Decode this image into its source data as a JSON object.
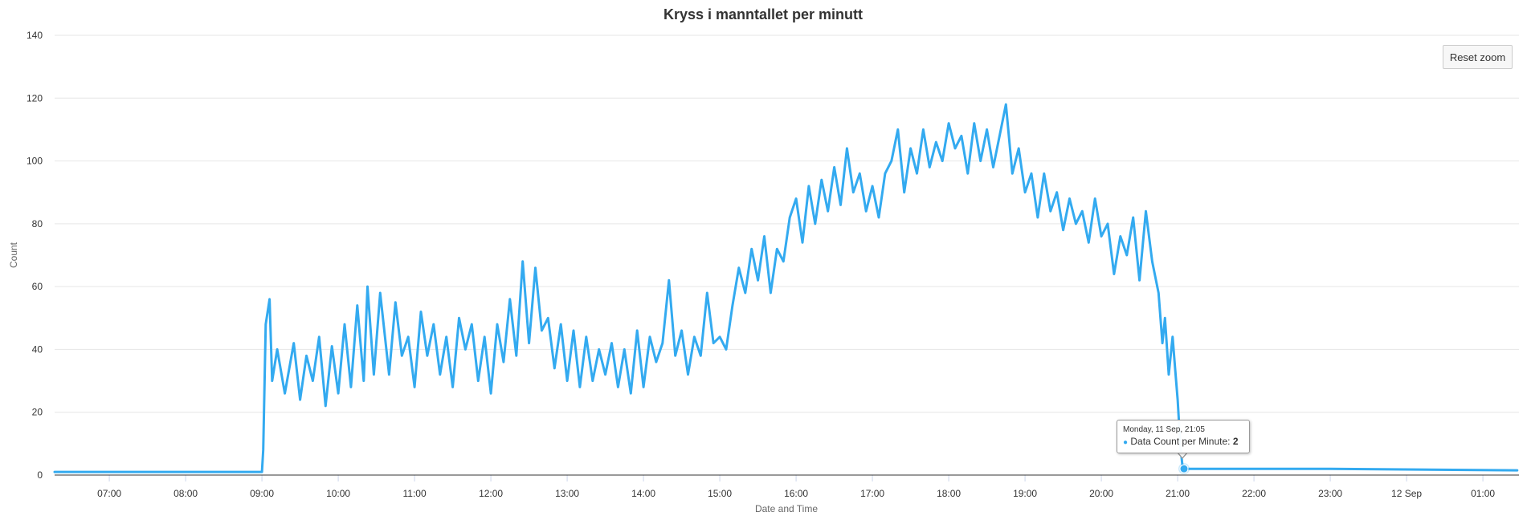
{
  "chart_data": {
    "type": "line",
    "title": "Kryss i manntallet per minutt",
    "xlabel": "Date and Time",
    "ylabel": "Count",
    "ylim": [
      0,
      140
    ],
    "y_ticks": [
      0,
      20,
      40,
      60,
      80,
      100,
      120,
      140
    ],
    "x_range": [
      "06:17",
      "01:27+1"
    ],
    "x_ticks": [
      "07:00",
      "08:00",
      "09:00",
      "10:00",
      "11:00",
      "12:00",
      "13:00",
      "14:00",
      "15:00",
      "16:00",
      "17:00",
      "18:00",
      "19:00",
      "20:00",
      "21:00",
      "22:00",
      "23:00",
      "12 Sep",
      "01:00"
    ],
    "grid": true,
    "legend": "none",
    "line_color": "#33aaf0",
    "series": [
      {
        "name": "Data Count per Minute",
        "points": [
          [
            "06:17",
            1
          ],
          [
            "09:00",
            1
          ],
          [
            "09:01",
            8
          ],
          [
            "09:03",
            48
          ],
          [
            "09:06",
            56
          ],
          [
            "09:08",
            30
          ],
          [
            "09:12",
            40
          ],
          [
            "09:18",
            26
          ],
          [
            "09:25",
            42
          ],
          [
            "09:30",
            24
          ],
          [
            "09:35",
            38
          ],
          [
            "09:40",
            30
          ],
          [
            "09:45",
            44
          ],
          [
            "09:50",
            22
          ],
          [
            "09:55",
            41
          ],
          [
            "10:00",
            26
          ],
          [
            "10:05",
            48
          ],
          [
            "10:10",
            28
          ],
          [
            "10:15",
            54
          ],
          [
            "10:20",
            30
          ],
          [
            "10:23",
            60
          ],
          [
            "10:28",
            32
          ],
          [
            "10:33",
            58
          ],
          [
            "10:40",
            32
          ],
          [
            "10:45",
            55
          ],
          [
            "10:50",
            38
          ],
          [
            "10:55",
            44
          ],
          [
            "11:00",
            28
          ],
          [
            "11:05",
            52
          ],
          [
            "11:10",
            38
          ],
          [
            "11:15",
            48
          ],
          [
            "11:20",
            32
          ],
          [
            "11:25",
            44
          ],
          [
            "11:30",
            28
          ],
          [
            "11:35",
            50
          ],
          [
            "11:40",
            40
          ],
          [
            "11:45",
            48
          ],
          [
            "11:50",
            30
          ],
          [
            "11:55",
            44
          ],
          [
            "12:00",
            26
          ],
          [
            "12:05",
            48
          ],
          [
            "12:10",
            36
          ],
          [
            "12:15",
            56
          ],
          [
            "12:20",
            38
          ],
          [
            "12:25",
            68
          ],
          [
            "12:30",
            42
          ],
          [
            "12:35",
            66
          ],
          [
            "12:40",
            46
          ],
          [
            "12:45",
            50
          ],
          [
            "12:50",
            34
          ],
          [
            "12:55",
            48
          ],
          [
            "13:00",
            30
          ],
          [
            "13:05",
            46
          ],
          [
            "13:10",
            28
          ],
          [
            "13:15",
            44
          ],
          [
            "13:20",
            30
          ],
          [
            "13:25",
            40
          ],
          [
            "13:30",
            32
          ],
          [
            "13:35",
            42
          ],
          [
            "13:40",
            28
          ],
          [
            "13:45",
            40
          ],
          [
            "13:50",
            26
          ],
          [
            "13:55",
            46
          ],
          [
            "14:00",
            28
          ],
          [
            "14:05",
            44
          ],
          [
            "14:10",
            36
          ],
          [
            "14:15",
            42
          ],
          [
            "14:20",
            62
          ],
          [
            "14:25",
            38
          ],
          [
            "14:30",
            46
          ],
          [
            "14:35",
            32
          ],
          [
            "14:40",
            44
          ],
          [
            "14:45",
            38
          ],
          [
            "14:50",
            58
          ],
          [
            "14:55",
            42
          ],
          [
            "15:00",
            44
          ],
          [
            "15:05",
            40
          ],
          [
            "15:10",
            54
          ],
          [
            "15:15",
            66
          ],
          [
            "15:20",
            58
          ],
          [
            "15:25",
            72
          ],
          [
            "15:30",
            62
          ],
          [
            "15:35",
            76
          ],
          [
            "15:40",
            58
          ],
          [
            "15:45",
            72
          ],
          [
            "15:50",
            68
          ],
          [
            "15:55",
            82
          ],
          [
            "16:00",
            88
          ],
          [
            "16:05",
            74
          ],
          [
            "16:10",
            92
          ],
          [
            "16:15",
            80
          ],
          [
            "16:20",
            94
          ],
          [
            "16:25",
            84
          ],
          [
            "16:30",
            98
          ],
          [
            "16:35",
            86
          ],
          [
            "16:40",
            104
          ],
          [
            "16:45",
            90
          ],
          [
            "16:50",
            96
          ],
          [
            "16:55",
            84
          ],
          [
            "17:00",
            92
          ],
          [
            "17:05",
            82
          ],
          [
            "17:10",
            96
          ],
          [
            "17:15",
            100
          ],
          [
            "17:20",
            110
          ],
          [
            "17:25",
            90
          ],
          [
            "17:30",
            104
          ],
          [
            "17:35",
            96
          ],
          [
            "17:40",
            110
          ],
          [
            "17:45",
            98
          ],
          [
            "17:50",
            106
          ],
          [
            "17:55",
            100
          ],
          [
            "18:00",
            112
          ],
          [
            "18:05",
            104
          ],
          [
            "18:10",
            108
          ],
          [
            "18:15",
            96
          ],
          [
            "18:20",
            112
          ],
          [
            "18:25",
            100
          ],
          [
            "18:30",
            110
          ],
          [
            "18:35",
            98
          ],
          [
            "18:40",
            108
          ],
          [
            "18:45",
            118
          ],
          [
            "18:50",
            96
          ],
          [
            "18:55",
            104
          ],
          [
            "19:00",
            90
          ],
          [
            "19:05",
            96
          ],
          [
            "19:10",
            82
          ],
          [
            "19:15",
            96
          ],
          [
            "19:20",
            84
          ],
          [
            "19:25",
            90
          ],
          [
            "19:30",
            78
          ],
          [
            "19:35",
            88
          ],
          [
            "19:40",
            80
          ],
          [
            "19:45",
            84
          ],
          [
            "19:50",
            74
          ],
          [
            "19:55",
            88
          ],
          [
            "20:00",
            76
          ],
          [
            "20:05",
            80
          ],
          [
            "20:10",
            64
          ],
          [
            "20:15",
            76
          ],
          [
            "20:20",
            70
          ],
          [
            "20:25",
            82
          ],
          [
            "20:30",
            62
          ],
          [
            "20:35",
            84
          ],
          [
            "20:40",
            68
          ],
          [
            "20:45",
            58
          ],
          [
            "20:48",
            42
          ],
          [
            "20:50",
            50
          ],
          [
            "20:53",
            32
          ],
          [
            "20:56",
            44
          ],
          [
            "20:58",
            34
          ],
          [
            "21:00",
            24
          ],
          [
            "21:02",
            10
          ],
          [
            "21:04",
            2
          ],
          [
            "21:05",
            2
          ],
          [
            "23:00",
            2
          ],
          [
            "01:27+1",
            1.5
          ]
        ]
      }
    ],
    "tooltip": {
      "date": "Monday, 11 Sep, 21:05",
      "label": "Data Count per Minute:",
      "value": "2"
    }
  },
  "controls": {
    "reset_zoom": "Reset zoom"
  }
}
